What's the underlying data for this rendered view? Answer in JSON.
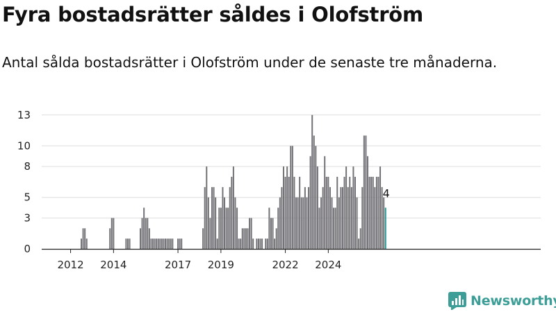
{
  "chart_data": {
    "type": "bar",
    "title": "Fyra bostadsrätter såldes i Olofström",
    "subtitle": "Antal sålda bostadsrätter i Olofström under de senaste tre månaderna.",
    "xlabel": "",
    "ylabel": "",
    "ylim": [
      0,
      14.4
    ],
    "yticks": [
      0,
      3,
      5,
      8,
      10,
      13
    ],
    "ytick_labels": [
      "0",
      "3",
      "5",
      "8",
      "10",
      "13"
    ],
    "xticks": [
      {
        "x": "2012-01",
        "label": "2012"
      },
      {
        "x": "2014-01",
        "label": "2014"
      },
      {
        "x": "2017-01",
        "label": "2017"
      },
      {
        "x": "2019-01",
        "label": "2019"
      },
      {
        "x": "2022-01",
        "label": "2022"
      },
      {
        "x": "2024-01",
        "label": "2024"
      }
    ],
    "grid": true,
    "start_month": "2011-11",
    "values": [
      0,
      0,
      0,
      0,
      0,
      0,
      0,
      0,
      1,
      2,
      2,
      1,
      0,
      0,
      0,
      0,
      0,
      0,
      0,
      0,
      0,
      0,
      0,
      0,
      2,
      3,
      3,
      0,
      0,
      0,
      0,
      0,
      0,
      1,
      1,
      1,
      0,
      0,
      0,
      0,
      0,
      2,
      3,
      4,
      3,
      3,
      2,
      1,
      1,
      1,
      1,
      1,
      1,
      1,
      1,
      1,
      1,
      1,
      1,
      1,
      0,
      0,
      1,
      1,
      1,
      0,
      0,
      0,
      0,
      0,
      0,
      0,
      0,
      0,
      0,
      0,
      2,
      6,
      8,
      5,
      3,
      6,
      6,
      5,
      1,
      4,
      4,
      6,
      5,
      4,
      4,
      6,
      7,
      8,
      5,
      4,
      1,
      1,
      2,
      2,
      2,
      2,
      3,
      3,
      1,
      0,
      1,
      1,
      1,
      1,
      0,
      1,
      1,
      4,
      3,
      3,
      1,
      2,
      4,
      5,
      6,
      8,
      7,
      8,
      7,
      10,
      10,
      7,
      5,
      5,
      7,
      5,
      5,
      6,
      5,
      6,
      9,
      13,
      11,
      10,
      8,
      4,
      5,
      6,
      9,
      7,
      7,
      6,
      5,
      4,
      4,
      7,
      5,
      6,
      6,
      7,
      8,
      6,
      7,
      6,
      8,
      7,
      5,
      1,
      2,
      6,
      11,
      11,
      9,
      7,
      7,
      7,
      6,
      7,
      7,
      8,
      6,
      5,
      4
    ],
    "last_value_label": "4",
    "colors": {
      "bar": "#747377",
      "highlight": "#2b9a96",
      "grid": "#dddddd",
      "axis": "#222222"
    }
  },
  "brand": {
    "name": "Newsworthy",
    "color": "#3c9e97"
  }
}
